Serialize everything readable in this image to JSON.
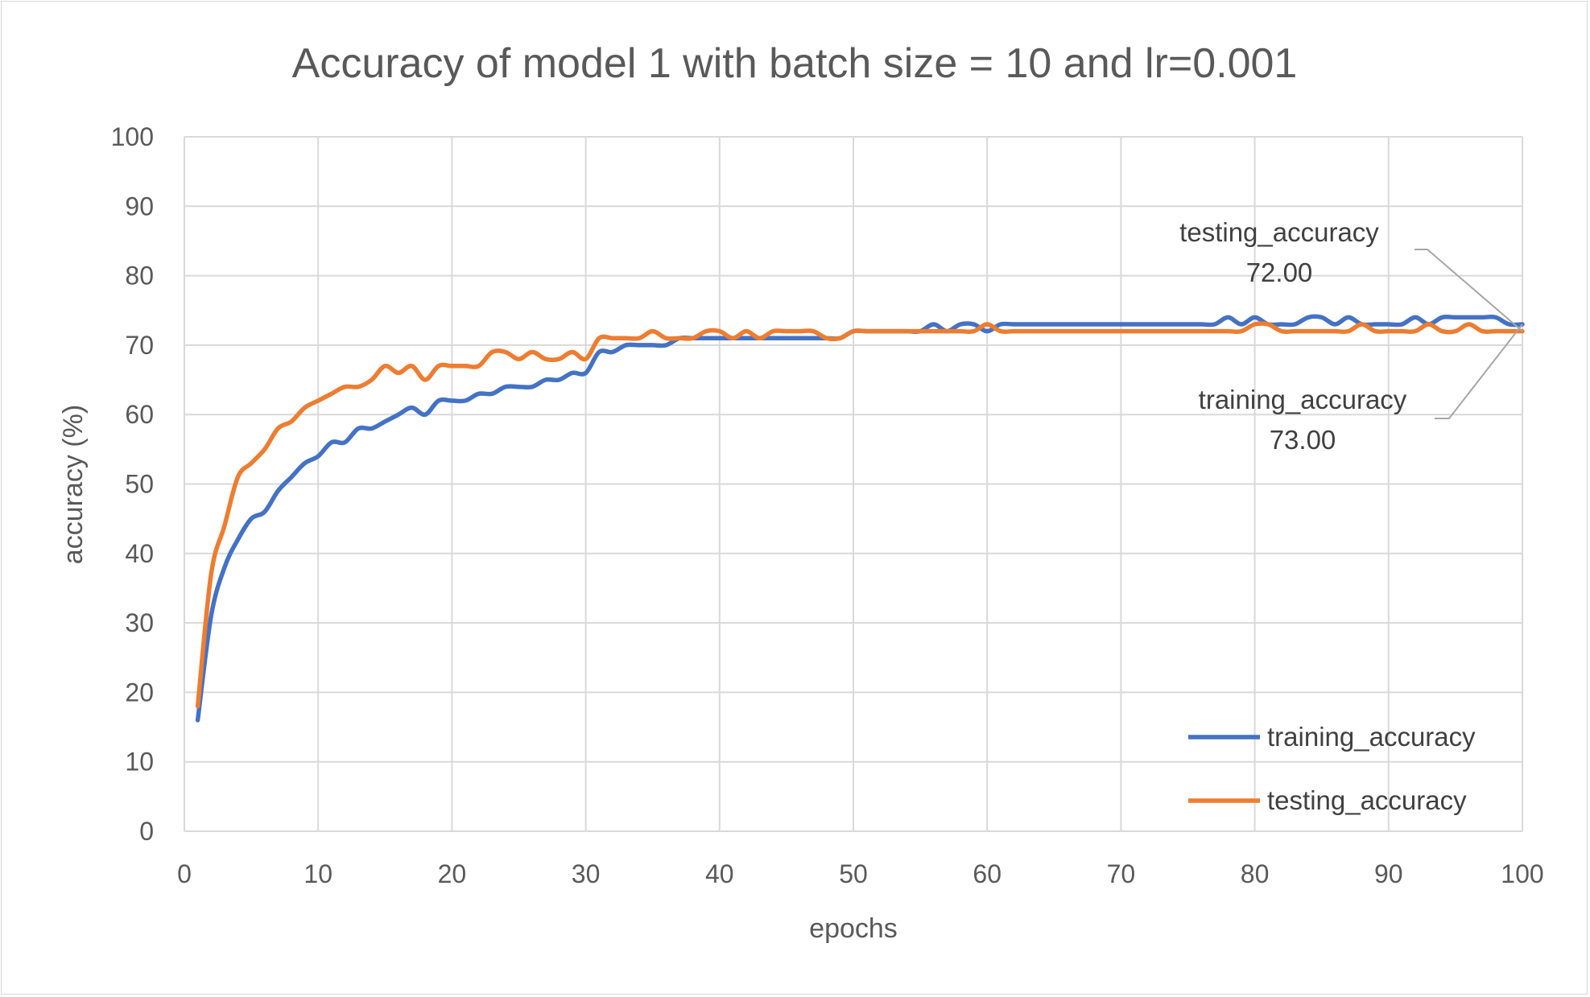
{
  "chart_data": {
    "type": "line",
    "title": "Accuracy of model 1 with batch size = 10 and lr=0.001",
    "xlabel": "epochs",
    "ylabel": "accuracy (%)",
    "xlim": [
      0,
      100
    ],
    "ylim": [
      0,
      100
    ],
    "x_ticks": [
      "0",
      "10",
      "20",
      "30",
      "40",
      "50",
      "60",
      "70",
      "80",
      "90",
      "100"
    ],
    "y_ticks": [
      "0",
      "10",
      "20",
      "30",
      "40",
      "50",
      "60",
      "70",
      "80",
      "90",
      "100"
    ],
    "grid": "both",
    "legend_position": "bottom-right",
    "series": [
      {
        "name": "training_accuracy",
        "color": "#4472C4",
        "x": [
          1,
          2,
          3,
          4,
          5,
          6,
          7,
          8,
          9,
          10,
          11,
          12,
          13,
          14,
          15,
          16,
          17,
          18,
          19,
          20,
          21,
          22,
          23,
          24,
          25,
          26,
          27,
          28,
          29,
          30,
          31,
          32,
          33,
          34,
          35,
          36,
          37,
          38,
          39,
          40,
          41,
          42,
          43,
          44,
          45,
          46,
          47,
          48,
          49,
          50,
          51,
          52,
          53,
          54,
          55,
          56,
          57,
          58,
          59,
          60,
          61,
          62,
          63,
          64,
          65,
          66,
          67,
          68,
          69,
          70,
          71,
          72,
          73,
          74,
          75,
          76,
          77,
          78,
          79,
          80,
          81,
          82,
          83,
          84,
          85,
          86,
          87,
          88,
          89,
          90,
          91,
          92,
          93,
          94,
          95,
          96,
          97,
          98,
          99,
          100
        ],
        "values": [
          16,
          31,
          38,
          42,
          45,
          46,
          49,
          51,
          53,
          54,
          56,
          56,
          58,
          58,
          59,
          60,
          61,
          60,
          62,
          62,
          62,
          63,
          63,
          64,
          64,
          64,
          65,
          65,
          66,
          66,
          69,
          69,
          70,
          70,
          70,
          70,
          71,
          71,
          71,
          71,
          71,
          71,
          71,
          71,
          71,
          71,
          71,
          71,
          71,
          72,
          72,
          72,
          72,
          72,
          72,
          73,
          72,
          73,
          73,
          72,
          73,
          73,
          73,
          73,
          73,
          73,
          73,
          73,
          73,
          73,
          73,
          73,
          73,
          73,
          73,
          73,
          73,
          74,
          73,
          74,
          73,
          73,
          73,
          74,
          74,
          73,
          74,
          73,
          73,
          73,
          73,
          74,
          73,
          74,
          74,
          74,
          74,
          74,
          73,
          73
        ]
      },
      {
        "name": "testing_accuracy",
        "color": "#ED7D31",
        "x": [
          1,
          2,
          3,
          4,
          5,
          6,
          7,
          8,
          9,
          10,
          11,
          12,
          13,
          14,
          15,
          16,
          17,
          18,
          19,
          20,
          21,
          22,
          23,
          24,
          25,
          26,
          27,
          28,
          29,
          30,
          31,
          32,
          33,
          34,
          35,
          36,
          37,
          38,
          39,
          40,
          41,
          42,
          43,
          44,
          45,
          46,
          47,
          48,
          49,
          50,
          51,
          52,
          53,
          54,
          55,
          56,
          57,
          58,
          59,
          60,
          61,
          62,
          63,
          64,
          65,
          66,
          67,
          68,
          69,
          70,
          71,
          72,
          73,
          74,
          75,
          76,
          77,
          78,
          79,
          80,
          81,
          82,
          83,
          84,
          85,
          86,
          87,
          88,
          89,
          90,
          91,
          92,
          93,
          94,
          95,
          96,
          97,
          98,
          99,
          100
        ],
        "values": [
          18,
          37,
          44,
          51,
          53,
          55,
          58,
          59,
          61,
          62,
          63,
          64,
          64,
          65,
          67,
          66,
          67,
          65,
          67,
          67,
          67,
          67,
          69,
          69,
          68,
          69,
          68,
          68,
          69,
          68,
          71,
          71,
          71,
          71,
          72,
          71,
          71,
          71,
          72,
          72,
          71,
          72,
          71,
          72,
          72,
          72,
          72,
          71,
          71,
          72,
          72,
          72,
          72,
          72,
          72,
          72,
          72,
          72,
          72,
          73,
          72,
          72,
          72,
          72,
          72,
          72,
          72,
          72,
          72,
          72,
          72,
          72,
          72,
          72,
          72,
          72,
          72,
          72,
          72,
          73,
          73,
          72,
          72,
          72,
          72,
          72,
          72,
          73,
          72,
          72,
          72,
          72,
          73,
          72,
          72,
          73,
          72,
          72,
          72,
          72
        ]
      }
    ],
    "annotations": [
      {
        "series": "testing_accuracy",
        "label": "testing_accuracy",
        "value": "72.00"
      },
      {
        "series": "training_accuracy",
        "label": "training_accuracy",
        "value": "73.00"
      }
    ]
  }
}
